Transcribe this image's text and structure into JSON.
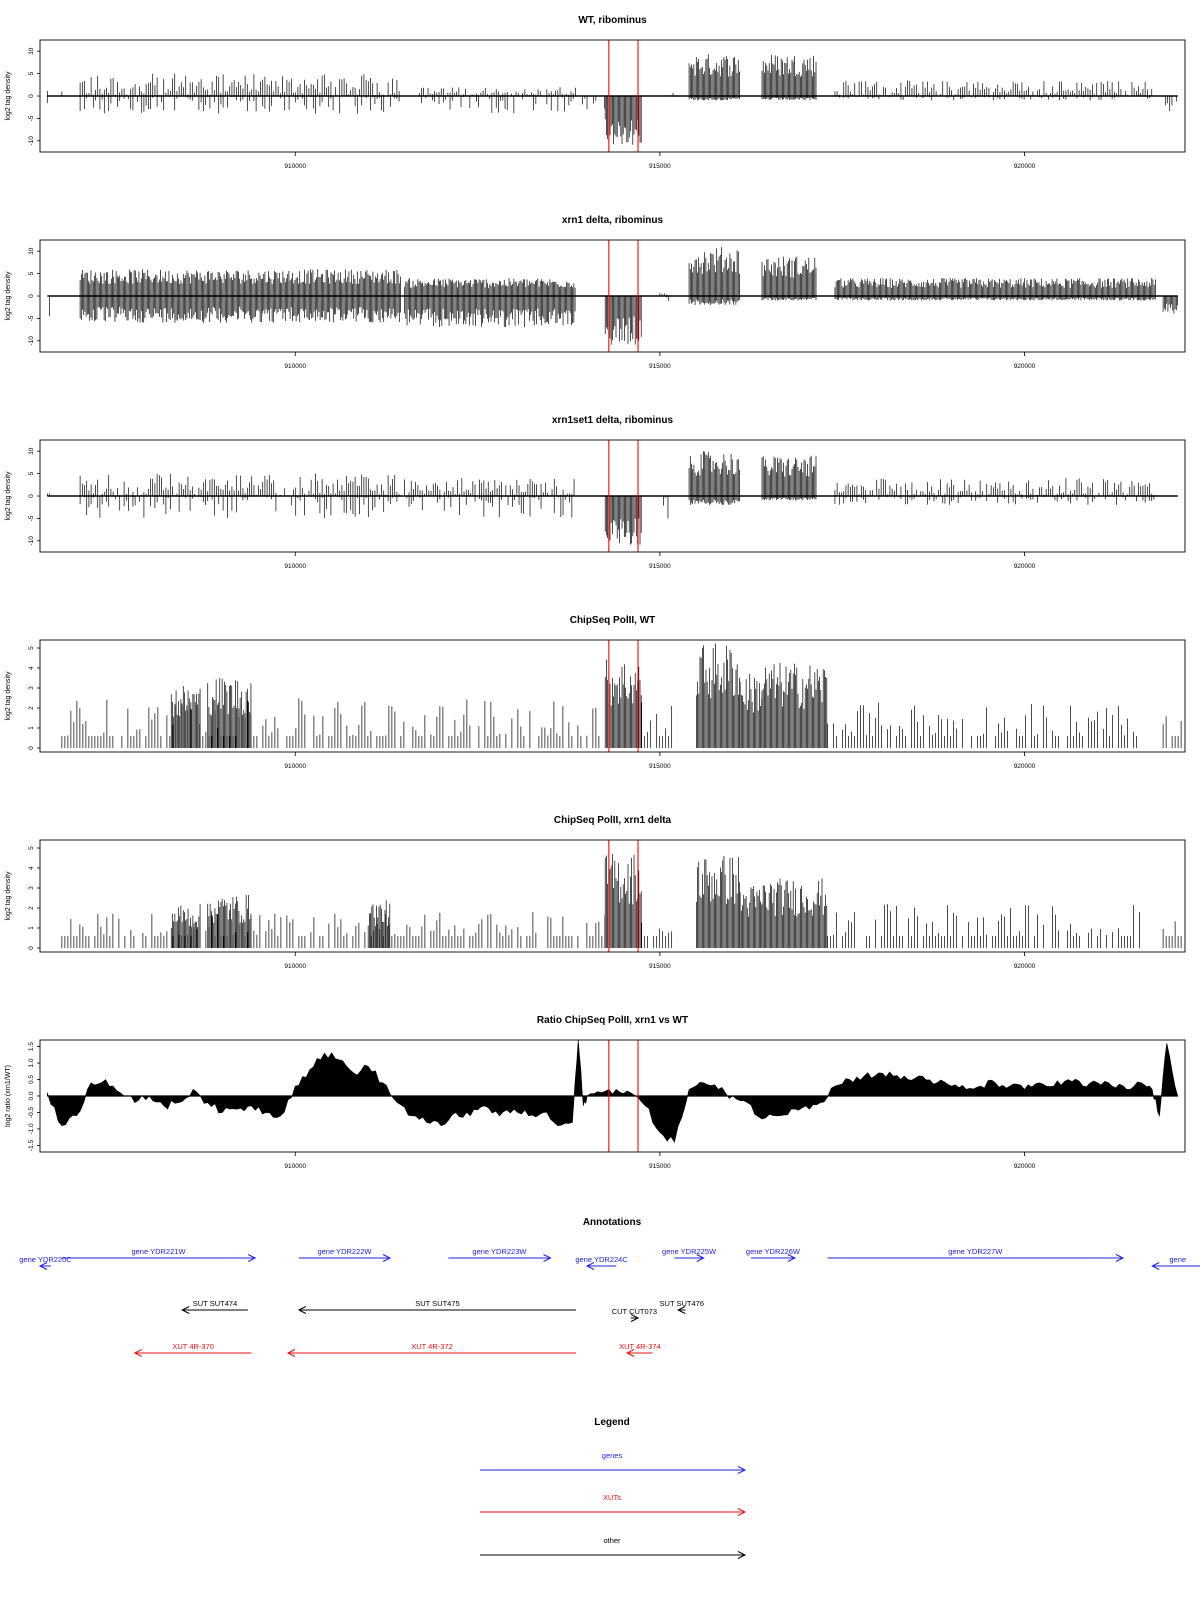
{
  "chart_data": [
    {
      "type": "bar",
      "title": "WT, ribominus",
      "ylabel": "log2 tag density",
      "xlim": [
        906500,
        922200
      ],
      "ylim": [
        -12.5,
        12.5
      ],
      "yticks": [
        "-10",
        "-5",
        "0",
        "5",
        "10"
      ],
      "xticks": [
        "910000",
        "915000",
        "920000"
      ],
      "highlight_x": [
        914300,
        914700
      ],
      "regions": [
        {
          "start": 906600,
          "end": 906620,
          "lo": -3,
          "hi": 2,
          "mode": "spiky"
        },
        {
          "start": 906800,
          "end": 906820,
          "lo": -1,
          "hi": 1,
          "mode": "spiky"
        },
        {
          "start": 907050,
          "end": 911450,
          "lo": -4,
          "hi": 5,
          "mode": "spiky"
        },
        {
          "start": 911700,
          "end": 913850,
          "lo": -4,
          "hi": 2,
          "mode": "spiky"
        },
        {
          "start": 913850,
          "end": 914250,
          "lo": -3,
          "hi": 0,
          "mode": "spiky"
        },
        {
          "start": 914250,
          "end": 914750,
          "lo": -11,
          "hi": 0,
          "mode": "dense"
        },
        {
          "start": 915150,
          "end": 915200,
          "lo": -1,
          "hi": 1,
          "mode": "spiky"
        },
        {
          "start": 915400,
          "end": 916100,
          "lo": -1,
          "hi": 9.5,
          "mode": "dense"
        },
        {
          "start": 916400,
          "end": 917150,
          "lo": -1,
          "hi": 9.5,
          "mode": "dense"
        },
        {
          "start": 917400,
          "end": 921800,
          "lo": -1,
          "hi": 3.5,
          "mode": "spiky"
        },
        {
          "start": 921900,
          "end": 922100,
          "lo": -4,
          "hi": 0,
          "mode": "spiky"
        }
      ]
    },
    {
      "type": "bar",
      "title": "xrn1 delta, ribominus",
      "ylabel": "log2 tag density",
      "xlim": [
        906500,
        922200
      ],
      "ylim": [
        -12.5,
        12.5
      ],
      "yticks": [
        "-10",
        "-5",
        "0",
        "5",
        "10"
      ],
      "xticks": [
        "910000",
        "915000",
        "920000"
      ],
      "highlight_x": [
        914300,
        914700
      ],
      "regions": [
        {
          "start": 906600,
          "end": 906650,
          "lo": -5,
          "hi": 0,
          "mode": "spiky"
        },
        {
          "start": 907050,
          "end": 911450,
          "lo": -6,
          "hi": 6,
          "mode": "dense"
        },
        {
          "start": 911500,
          "end": 913850,
          "lo": -7,
          "hi": 4,
          "mode": "dense"
        },
        {
          "start": 914250,
          "end": 914750,
          "lo": -11,
          "hi": 0,
          "mode": "dense"
        },
        {
          "start": 915000,
          "end": 915150,
          "lo": -2,
          "hi": 1,
          "mode": "spiky"
        },
        {
          "start": 915400,
          "end": 916100,
          "lo": -2,
          "hi": 11,
          "mode": "dense"
        },
        {
          "start": 916400,
          "end": 917150,
          "lo": -1,
          "hi": 9,
          "mode": "dense"
        },
        {
          "start": 917400,
          "end": 921800,
          "lo": -1,
          "hi": 4,
          "mode": "dense"
        },
        {
          "start": 921900,
          "end": 922100,
          "lo": -4,
          "hi": 0,
          "mode": "dense"
        }
      ]
    },
    {
      "type": "bar",
      "title": "xrn1set1 delta, ribominus",
      "ylabel": "log2 tag density",
      "xlim": [
        906500,
        922200
      ],
      "ylim": [
        -12.5,
        12.5
      ],
      "yticks": [
        "-10",
        "-5",
        "0",
        "5",
        "10"
      ],
      "xticks": [
        "910000",
        "915000",
        "920000"
      ],
      "highlight_x": [
        914300,
        914700
      ],
      "regions": [
        {
          "start": 906600,
          "end": 906650,
          "lo": -4,
          "hi": 1,
          "mode": "spiky"
        },
        {
          "start": 907050,
          "end": 911450,
          "lo": -5,
          "hi": 5,
          "mode": "spiky"
        },
        {
          "start": 911500,
          "end": 913850,
          "lo": -5,
          "hi": 4,
          "mode": "spiky"
        },
        {
          "start": 914250,
          "end": 914750,
          "lo": -11,
          "hi": 0,
          "mode": "dense"
        },
        {
          "start": 915050,
          "end": 915150,
          "lo": -5,
          "hi": 0,
          "mode": "spiky"
        },
        {
          "start": 915400,
          "end": 916100,
          "lo": -2,
          "hi": 10,
          "mode": "dense"
        },
        {
          "start": 916400,
          "end": 917150,
          "lo": -1,
          "hi": 9,
          "mode": "dense"
        },
        {
          "start": 917400,
          "end": 921800,
          "lo": -2,
          "hi": 4,
          "mode": "spiky"
        },
        {
          "start": 921900,
          "end": 922100,
          "lo": -5,
          "hi": 0,
          "mode": "spiky"
        }
      ]
    },
    {
      "type": "bar",
      "title": "ChipSeq PolII, WT",
      "ylabel": "log2 tag density",
      "xlim": [
        906500,
        922200
      ],
      "ylim": [
        -0.2,
        5.4
      ],
      "yticks": [
        "0",
        "1",
        "2",
        "3",
        "4",
        "5"
      ],
      "xticks": [
        "910000",
        "915000",
        "920000"
      ],
      "highlight_x": [
        914300,
        914700
      ],
      "regions": [
        {
          "start": 906800,
          "end": 914250,
          "lo": 0,
          "hi": 2.5,
          "mode": "sparse"
        },
        {
          "start": 908300,
          "end": 908700,
          "lo": 0,
          "hi": 3.2,
          "mode": "dense"
        },
        {
          "start": 908800,
          "end": 909400,
          "lo": 0,
          "hi": 3.6,
          "mode": "dense"
        },
        {
          "start": 914250,
          "end": 914750,
          "lo": 0,
          "hi": 4.5,
          "mode": "dense"
        },
        {
          "start": 914750,
          "end": 915200,
          "lo": 0,
          "hi": 2.5,
          "mode": "sparse"
        },
        {
          "start": 915500,
          "end": 916100,
          "lo": 0,
          "hi": 5.3,
          "mode": "dense"
        },
        {
          "start": 916100,
          "end": 916400,
          "lo": 0,
          "hi": 3.8,
          "mode": "dense"
        },
        {
          "start": 916400,
          "end": 917300,
          "lo": 0,
          "hi": 4.3,
          "mode": "dense"
        },
        {
          "start": 917300,
          "end": 921600,
          "lo": 0,
          "hi": 2.3,
          "mode": "sparse"
        },
        {
          "start": 921900,
          "end": 922150,
          "lo": 0,
          "hi": 1.6,
          "mode": "sparse"
        }
      ]
    },
    {
      "type": "bar",
      "title": "ChipSeq PolII, xrn1 delta",
      "ylabel": "log2 tag density",
      "xlim": [
        906500,
        922200
      ],
      "ylim": [
        -0.2,
        5.4
      ],
      "yticks": [
        "0",
        "1",
        "2",
        "3",
        "4",
        "5"
      ],
      "xticks": [
        "910000",
        "915000",
        "920000"
      ],
      "highlight_x": [
        914300,
        914700
      ],
      "regions": [
        {
          "start": 906800,
          "end": 914250,
          "lo": 0,
          "hi": 1.8,
          "mode": "sparse"
        },
        {
          "start": 908300,
          "end": 908700,
          "lo": 0,
          "hi": 2.2,
          "mode": "dense"
        },
        {
          "start": 908800,
          "end": 909400,
          "lo": 0,
          "hi": 2.7,
          "mode": "dense"
        },
        {
          "start": 911000,
          "end": 911300,
          "lo": 0,
          "hi": 2.4,
          "mode": "dense"
        },
        {
          "start": 914250,
          "end": 914750,
          "lo": 0,
          "hi": 4.8,
          "mode": "dense"
        },
        {
          "start": 914750,
          "end": 915200,
          "lo": 0,
          "hi": 1.6,
          "mode": "sparse"
        },
        {
          "start": 915500,
          "end": 916100,
          "lo": 0,
          "hi": 4.7,
          "mode": "dense"
        },
        {
          "start": 916100,
          "end": 916400,
          "lo": 0,
          "hi": 3.2,
          "mode": "dense"
        },
        {
          "start": 916400,
          "end": 917300,
          "lo": 0,
          "hi": 3.5,
          "mode": "dense"
        },
        {
          "start": 917300,
          "end": 921600,
          "lo": 0,
          "hi": 2.2,
          "mode": "sparse"
        },
        {
          "start": 921900,
          "end": 922150,
          "lo": 0,
          "hi": 1.4,
          "mode": "sparse"
        }
      ]
    },
    {
      "type": "area",
      "title": "Ratio ChipSeq PolII, xrn1 vs WT",
      "ylabel": "log2 ratio (xrn1/WT)",
      "xlim": [
        906500,
        922200
      ],
      "ylim": [
        -1.7,
        1.7
      ],
      "yticks": [
        "-1.5",
        "-1.0",
        "-0.5",
        "0.0",
        "0.5",
        "1.0",
        "1.5"
      ],
      "xticks": [
        "910000",
        "915000",
        "920000"
      ],
      "highlight_x": [
        914300,
        914700
      ],
      "x": [
        906600,
        906800,
        907000,
        907200,
        907400,
        907600,
        907800,
        908000,
        908200,
        908400,
        908600,
        908800,
        909000,
        909200,
        909400,
        909600,
        909800,
        910000,
        910200,
        910400,
        910600,
        910800,
        911000,
        911200,
        911400,
        911600,
        911800,
        912000,
        912200,
        912400,
        912600,
        912800,
        913000,
        913200,
        913400,
        913600,
        913800,
        913880,
        913950,
        914000,
        914200,
        914400,
        914600,
        914800,
        915000,
        915200,
        915400,
        915600,
        915800,
        916000,
        916200,
        916400,
        916600,
        916800,
        917000,
        917200,
        917400,
        917600,
        917800,
        918000,
        918200,
        918400,
        918600,
        918800,
        919000,
        919200,
        919400,
        919600,
        919800,
        920000,
        920200,
        920400,
        920600,
        920800,
        921000,
        921200,
        921400,
        921600,
        921750,
        921850,
        921950,
        922100
      ],
      "y": [
        0.1,
        -0.9,
        -0.6,
        0.4,
        0.5,
        0.1,
        -0.2,
        0.0,
        -0.3,
        -0.2,
        0.2,
        -0.2,
        -0.5,
        -0.4,
        -0.3,
        -0.5,
        -0.6,
        0.3,
        0.8,
        1.3,
        1.1,
        0.7,
        0.9,
        0.4,
        -0.2,
        -0.6,
        -0.8,
        -0.9,
        -0.5,
        -0.6,
        -0.3,
        -0.6,
        -0.4,
        -0.6,
        -0.5,
        -0.9,
        -0.8,
        1.7,
        -0.3,
        0.0,
        0.1,
        0.2,
        0.1,
        -0.3,
        -1.1,
        -1.4,
        0.2,
        0.4,
        0.2,
        0.0,
        -0.2,
        -0.7,
        -0.6,
        -0.4,
        -0.3,
        -0.2,
        0.3,
        0.5,
        0.6,
        0.7,
        0.6,
        0.5,
        0.6,
        0.4,
        0.3,
        0.2,
        0.3,
        0.4,
        0.3,
        0.2,
        0.4,
        0.3,
        0.5,
        0.3,
        0.4,
        0.3,
        0.2,
        0.4,
        0.2,
        -0.6,
        1.6,
        0.0
      ]
    }
  ],
  "annotations": {
    "title": "Annotations",
    "features": [
      {
        "label": "gene YDR220C",
        "kind": "gene",
        "start": 906500,
        "end": 906650,
        "strand": "-",
        "row": 1
      },
      {
        "label": "gene YDR221W",
        "kind": "gene",
        "start": 906800,
        "end": 909450,
        "strand": "+",
        "row": 0
      },
      {
        "label": "gene YDR222W",
        "kind": "gene",
        "start": 910050,
        "end": 911300,
        "strand": "+",
        "row": 0
      },
      {
        "label": "gene YDR223W",
        "kind": "gene",
        "start": 912100,
        "end": 913500,
        "strand": "+",
        "row": 0
      },
      {
        "label": "gene YDR224C",
        "kind": "gene",
        "start": 914000,
        "end": 914400,
        "strand": "-",
        "row": 1
      },
      {
        "label": "gene YDR225W",
        "kind": "gene",
        "start": 915200,
        "end": 915600,
        "strand": "+",
        "row": 0
      },
      {
        "label": "gene YDR226W",
        "kind": "gene",
        "start": 916250,
        "end": 916850,
        "strand": "+",
        "row": 0
      },
      {
        "label": "gene YDR227W",
        "kind": "gene",
        "start": 917300,
        "end": 921350,
        "strand": "+",
        "row": 0
      },
      {
        "label": "gene",
        "kind": "gene",
        "start": 921750,
        "end": 922450,
        "strand": "-",
        "row": 1
      },
      {
        "label": "SUT SUT474",
        "kind": "other",
        "start": 908450,
        "end": 909350,
        "strand": "-",
        "row": 2
      },
      {
        "label": "SUT SUT475",
        "kind": "other",
        "start": 910050,
        "end": 913850,
        "strand": "-",
        "row": 2
      },
      {
        "label": "CUT CUT073",
        "kind": "other",
        "start": 914600,
        "end": 914700,
        "strand": "+",
        "row": 3
      },
      {
        "label": "SUT SUT476",
        "kind": "other",
        "start": 915250,
        "end": 915350,
        "strand": "-",
        "row": 2
      },
      {
        "label": "XUT 4R-370",
        "kind": "xut",
        "start": 907800,
        "end": 909400,
        "strand": "-",
        "row": 4
      },
      {
        "label": "XUT 4R-372",
        "kind": "xut",
        "start": 909900,
        "end": 913850,
        "strand": "-",
        "row": 4
      },
      {
        "label": "XUT 4R-374",
        "kind": "xut",
        "start": 914550,
        "end": 914900,
        "strand": "-",
        "row": 4
      }
    ]
  },
  "legend": {
    "title": "Legend",
    "items": [
      {
        "label": "genes",
        "color": "#2020e0"
      },
      {
        "label": "XUTs",
        "color": "#e81010"
      },
      {
        "label": "other",
        "color": "#000000"
      }
    ]
  },
  "colors": {
    "highlight": "#ff0000",
    "gene": "#2020e0",
    "xut": "#e81010",
    "other": "#000000"
  }
}
